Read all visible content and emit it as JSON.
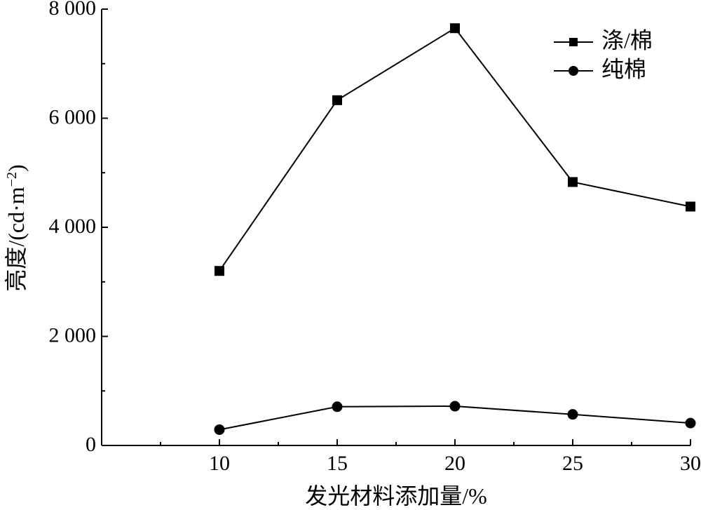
{
  "chart_data": {
    "type": "line",
    "xlabel": "发光材料添加量/%",
    "ylabel_main": "亮度/(cd·m",
    "ylabel_sup": "−2",
    "ylabel_close": ")",
    "x": [
      10,
      15,
      20,
      25,
      30
    ],
    "x_ticks": [
      "10",
      "15",
      "20",
      "25",
      "30"
    ],
    "xlim": [
      5,
      30
    ],
    "ylim": [
      0,
      8000
    ],
    "y_ticks": [
      {
        "value": 0,
        "label": "0"
      },
      {
        "value": 2000,
        "label": "2 000"
      },
      {
        "value": 4000,
        "label": "4 000"
      },
      {
        "value": 6000,
        "label": "6 000"
      },
      {
        "value": 8000,
        "label": "8 000"
      }
    ],
    "series": [
      {
        "name": "涤/棉",
        "marker": "square",
        "values": [
          3200,
          6330,
          7650,
          4830,
          4380
        ]
      },
      {
        "name": "纯棉",
        "marker": "circle",
        "values": [
          290,
          710,
          720,
          570,
          410
        ]
      }
    ],
    "legend_position": "top-right",
    "grid": false
  }
}
